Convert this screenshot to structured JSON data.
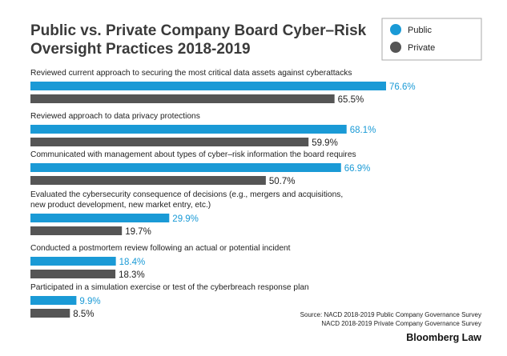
{
  "chart_data": {
    "type": "bar",
    "orientation": "horizontal",
    "title_lines": [
      "Public vs. Private Company Board Cyber–Risk",
      "Oversight Practices 2018-2019"
    ],
    "categories": [
      [
        "Reviewed current approach to securing the most critical data assets against cyberattacks"
      ],
      [
        "Reviewed approach to data privacy protections"
      ],
      [
        "Communicated with management about types of cyber–risk information the board requires"
      ],
      [
        "Evaluated the cybersecurity consequence of decisions (e.g., mergers and acquisitions,",
        "new product development, new market entry, etc.)"
      ],
      [
        "Conducted a postmortem review following an actual or potential incident"
      ],
      [
        "Participated in a simulation exercise or test of the cyberbreach response plan"
      ]
    ],
    "series": [
      {
        "name": "Public",
        "color": "#1a9ad6",
        "values": [
          76.6,
          68.1,
          66.9,
          29.9,
          18.4,
          9.9
        ]
      },
      {
        "name": "Private",
        "color": "#555555",
        "values": [
          65.5,
          59.9,
          50.7,
          19.7,
          18.3,
          8.5
        ]
      }
    ],
    "value_suffix": "%",
    "xlim": [
      0,
      100
    ],
    "grid": false,
    "legend_position": "top-right"
  },
  "source_lines": [
    "Source: NACD 2018-2019 Public Company Governance Survey",
    "NACD 2018-2019 Private Company Governance Survey"
  ],
  "brand": "Bloomberg Law"
}
